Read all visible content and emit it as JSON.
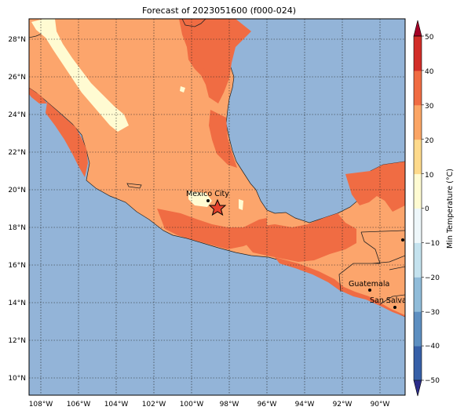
{
  "title": "Forecast of 2023051600 (f000-024)",
  "map": {
    "lat_ticks": [
      "28°N",
      "26°N",
      "24°N",
      "22°N",
      "20°N",
      "18°N",
      "16°N",
      "14°N",
      "12°N",
      "10°N"
    ],
    "lon_ticks": [
      "108°W",
      "106°W",
      "104°W",
      "102°W",
      "100°W",
      "98°W",
      "96°W",
      "94°W",
      "92°W",
      "90°W"
    ],
    "cities": [
      {
        "name": "Mexico City"
      },
      {
        "name": "Guatemala"
      },
      {
        "name": "San Salvador"
      }
    ],
    "ocean_color": "#93b4d8",
    "marker": {
      "type": "star",
      "color": "#e8422c"
    }
  },
  "colorbar": {
    "label": "Min Temperature (°C)",
    "ticks": [
      "50",
      "40",
      "30",
      "20",
      "10",
      "0",
      "−10",
      "−20",
      "−30",
      "−40",
      "−50"
    ],
    "colors": [
      "#2c2d8a",
      "#3760a8",
      "#5d8fc1",
      "#90bcd9",
      "#c4e2ee",
      "#eef7fa",
      "#fffbd2",
      "#feda8c",
      "#fba565",
      "#f06c43",
      "#d22e29",
      "#a50026"
    ]
  }
}
